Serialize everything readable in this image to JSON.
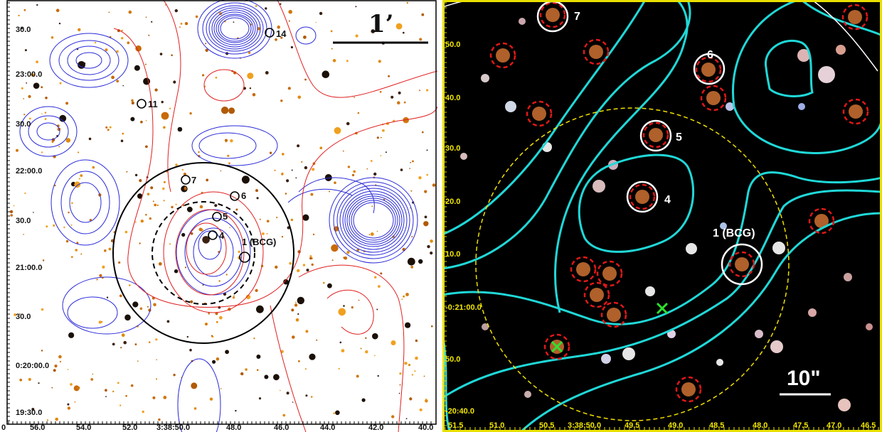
{
  "left_panel": {
    "scale_bar_label": "1’",
    "source_labels": {
      "s14": "14",
      "s11": "11",
      "s7": "7",
      "s6": "6",
      "s5": "5",
      "s4": "4",
      "s1": "1 (BCG)"
    },
    "dec_ticks": [
      "30.0",
      "23:00.0",
      "30.0",
      "22:00.0",
      "30.0",
      "21:00.0",
      "30.0",
      "0:20:00.0",
      "19:30.0"
    ],
    "ra_ticks": [
      "0",
      "56.0",
      "54.0",
      "52.0",
      "3:38:50.0",
      "48.0",
      "46.0",
      "44.0",
      "42.0",
      "40.0"
    ],
    "colors": {
      "x_ray_contours": "#2a2ad8",
      "red_contours": "#e02020",
      "background": "#ffffff",
      "galaxies": "#e08a10"
    }
  },
  "right_panel": {
    "scale_bar_label": "10\"",
    "source_labels": {
      "s7": "7",
      "s6": "6",
      "s5": "5",
      "s4": "4",
      "s1": "1 (BCG)"
    },
    "dec_ticks": [
      "50.0",
      "40.0",
      "30.0",
      "20.0",
      "10.0",
      "-0:21:00.0",
      "50.0",
      "-20:40.0"
    ],
    "ra_ticks": [
      "51.5",
      "51.0",
      "50.5",
      "3:38:50.0",
      "49.5",
      "49.0",
      "48.5",
      "48.0",
      "47.5",
      "47.0",
      "46.5"
    ],
    "colors": {
      "contours": "#20d8d8",
      "dashed_circles": "#e01818",
      "aperture": "#f0e000",
      "markers": "#30e030",
      "frame": "#e8e000"
    }
  }
}
